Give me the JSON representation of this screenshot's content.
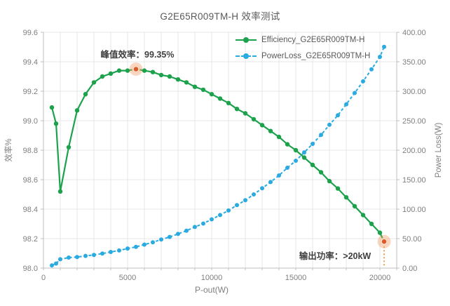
{
  "title": "G2E65R009TM-H 效率测试",
  "axes": {
    "x": {
      "label": "P-out(W)",
      "tick_labels": [
        "0",
        "5000",
        "10000",
        "15000",
        "20000"
      ],
      "tick_values": [
        0,
        5000,
        10000,
        15000,
        20000
      ],
      "min": 0,
      "max": 21000,
      "minor_grid_step": 1000
    },
    "y_left": {
      "label": "效率%",
      "tick_labels": [
        "99.6",
        "99.4",
        "99.2",
        "99.0",
        "98.8",
        "98.6",
        "98.4",
        "98.2",
        "98.0"
      ],
      "min": 98.0,
      "max": 99.6,
      "step": 0.2
    },
    "y_right": {
      "label": "Power Loss(W)",
      "tick_labels": [
        "400.00",
        "350.00",
        "300.00",
        "250.00",
        "200.00",
        "150.00",
        "100.00",
        "50.00",
        "0.00"
      ],
      "min": 0,
      "max": 400,
      "step": 50
    }
  },
  "legend": [
    {
      "name": "Efficiency_G2E65R009TM-H",
      "color": "#1ca24c",
      "line_style": "solid"
    },
    {
      "name": "PowerLoss_G2E65R009TM-H",
      "color": "#29abe2",
      "line_style": "dashed"
    }
  ],
  "annotations": {
    "peak": "峰值效率：99.35%",
    "output": "输出功率：>20kW"
  },
  "colors": {
    "grid": "#e7e7e7",
    "axis": "#bfbfbf",
    "tick_text": "#7f7f7f",
    "title_text": "#595959",
    "efficiency": "#1ca24c",
    "power_loss": "#29abe2",
    "highlight_dot": "#dc5b28",
    "highlight_halo": "rgba(243,150,94,0.38)",
    "highlight_halo_inner": "rgba(248,205,173,0.75)",
    "drop_line": "#f0a04b"
  },
  "chart_data": {
    "type": "line",
    "title": "G2E65R009TM-H 效率测试",
    "xlabel": "P-out(W)",
    "ylabel_left": "效率%",
    "ylabel_right": "Power Loss(W)",
    "x_range": [
      0,
      21000
    ],
    "y_left_range": [
      98.0,
      99.6
    ],
    "y_right_range": [
      0,
      400
    ],
    "grid": "on",
    "legend_position": "top-right-inside",
    "x": [
      500,
      750,
      1000,
      1500,
      2000,
      2500,
      3000,
      3500,
      4000,
      4500,
      5000,
      5500,
      6000,
      6500,
      7000,
      7500,
      8000,
      8500,
      9000,
      9500,
      10000,
      10500,
      11000,
      11500,
      12000,
      12500,
      13000,
      13500,
      14000,
      14500,
      15000,
      15500,
      16000,
      16500,
      17000,
      17500,
      18000,
      18500,
      19000,
      19500,
      20000,
      20250
    ],
    "series": [
      {
        "name": "Efficiency_G2E65R009TM-H",
        "axis": "left",
        "unit": "%",
        "line": "solid",
        "values": [
          99.09,
          98.98,
          98.52,
          98.82,
          99.07,
          99.18,
          99.26,
          99.3,
          99.32,
          99.34,
          99.34,
          99.35,
          99.34,
          99.33,
          99.31,
          99.3,
          99.28,
          99.26,
          99.23,
          99.21,
          99.18,
          99.15,
          99.12,
          99.08,
          99.05,
          99.01,
          98.97,
          98.93,
          98.89,
          98.84,
          98.8,
          98.75,
          98.7,
          98.65,
          98.59,
          98.54,
          98.48,
          98.42,
          98.36,
          98.3,
          98.24,
          98.18
        ]
      },
      {
        "name": "PowerLoss_G2E65R009TM-H",
        "axis": "right",
        "unit": "W",
        "line": "dashed",
        "values": [
          4.6,
          7.7,
          15.0,
          17.9,
          18.8,
          20.7,
          22.4,
          24.7,
          27.4,
          29.9,
          33.2,
          36.0,
          39.9,
          43.8,
          48.6,
          52.9,
          58.0,
          63.4,
          69.8,
          75.6,
          82.7,
          90.0,
          97.7,
          106.8,
          115.1,
          125.0,
          135.3,
          146.0,
          157.1,
          170.2,
          182.2,
          196.2,
          210.7,
          225.8,
          243.1,
          259.3,
          277.8,
          297.0,
          316.8,
          337.2,
          358.3,
          375.4
        ]
      }
    ],
    "highlights": [
      {
        "series": 0,
        "x": 5500,
        "value": 99.35,
        "label": "峰值效率：99.35%",
        "drop_line": false
      },
      {
        "series": 0,
        "x": 20250,
        "value": 98.18,
        "label": "输出功率：>20kW",
        "drop_line": true
      }
    ]
  }
}
